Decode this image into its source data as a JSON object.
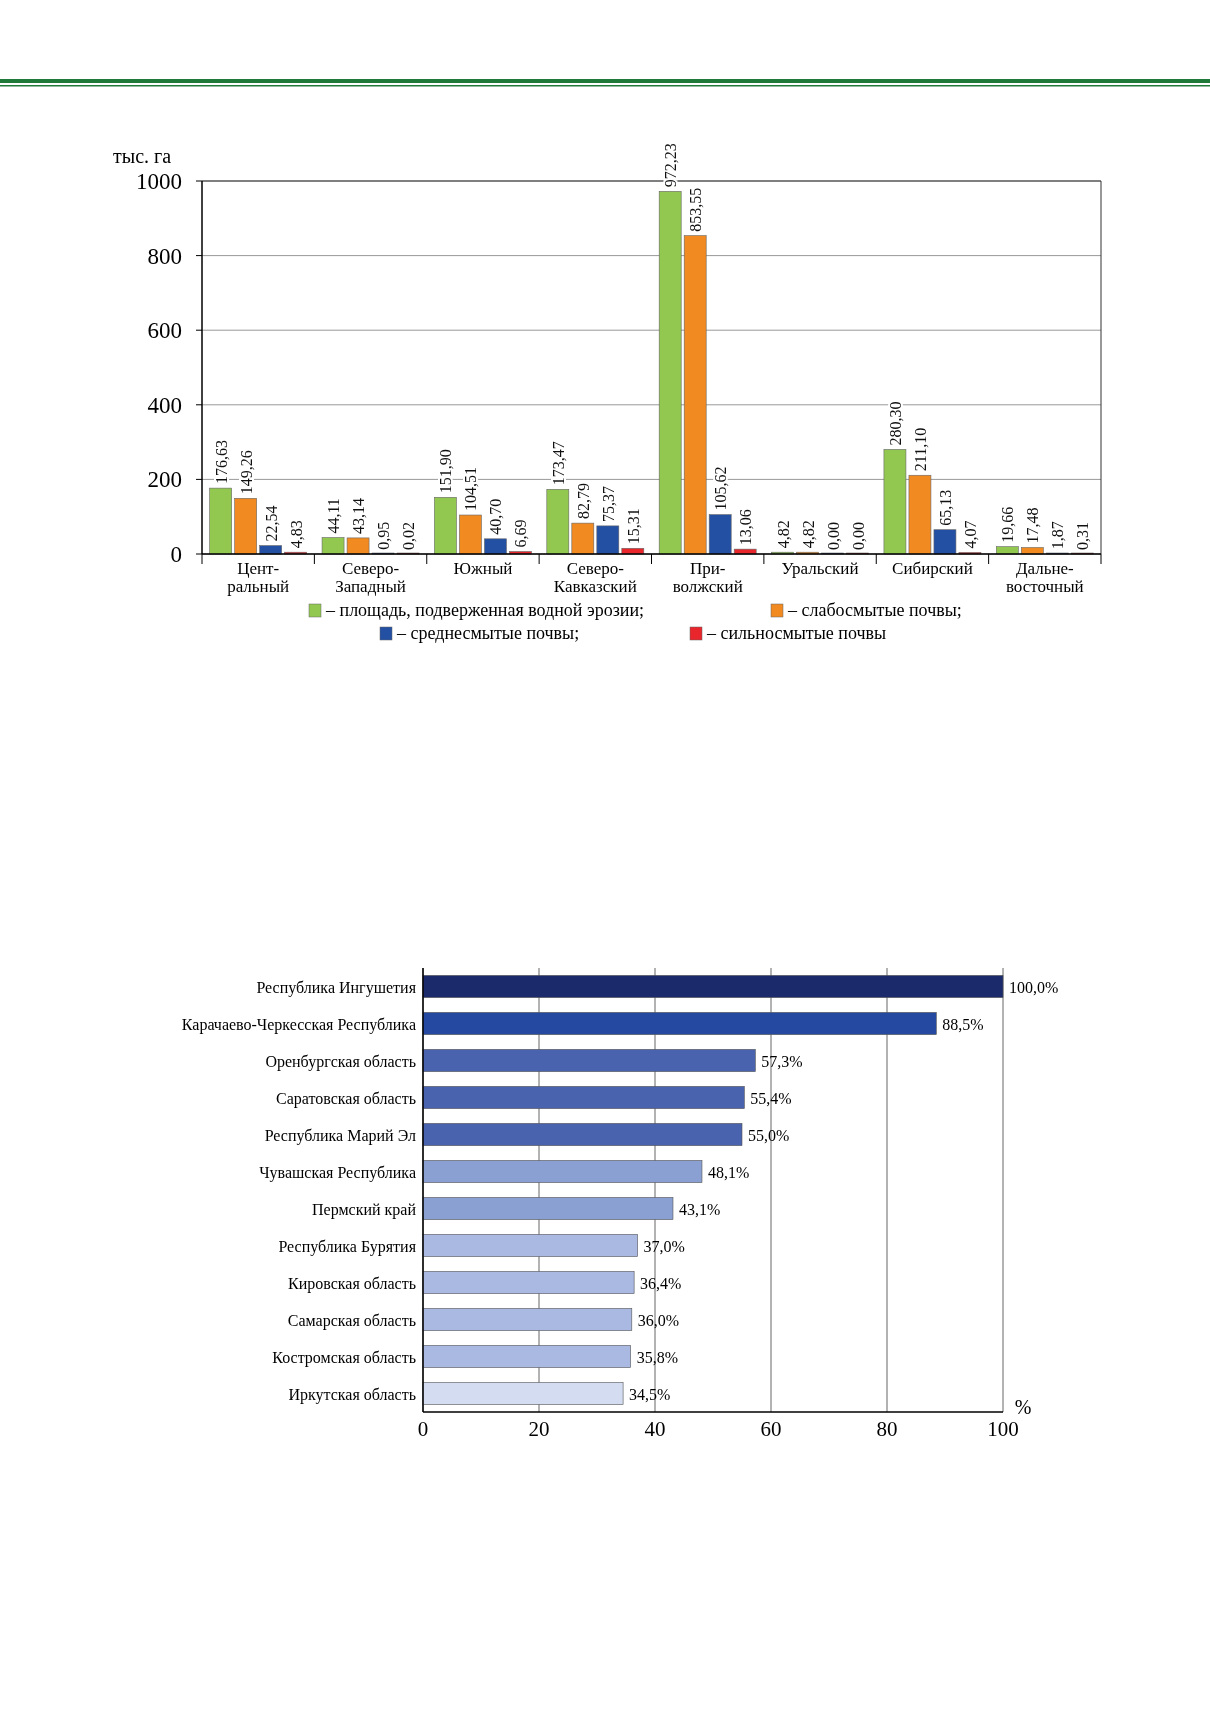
{
  "chart_data": [
    {
      "type": "bar",
      "ylabel": "тыс. га",
      "categories": [
        "Цент-\nральный",
        "Северо-\nЗападный",
        "Южный",
        "Северо-\nКавказский",
        "При-\nволжский",
        "Уральский",
        "Сибирский",
        "Дальне-\nвосточный"
      ],
      "series": [
        {
          "name": "– площадь, подверженная водной эрозии;",
          "color": "#92c84f",
          "values": [
            176.63,
            44.11,
            151.9,
            173.47,
            972.23,
            4.82,
            280.3,
            19.66
          ],
          "value_labels": [
            "176,63",
            "44,11",
            "151,90",
            "173,47",
            "972,23",
            "4,82",
            "280,30",
            "19,66"
          ]
        },
        {
          "name": "– слабосмытые почвы;",
          "color": "#f28a22",
          "values": [
            149.26,
            43.14,
            104.51,
            82.79,
            853.55,
            4.82,
            211.1,
            17.48
          ],
          "value_labels": [
            "149,26",
            "43,14",
            "104,51",
            "82,79",
            "853,55",
            "4,82",
            "211,10",
            "17,48"
          ]
        },
        {
          "name": "– среднесмытые почвы;",
          "color": "#2450a4",
          "values": [
            22.54,
            0.95,
            40.7,
            75.37,
            105.62,
            0.0,
            65.13,
            1.87
          ],
          "value_labels": [
            "22,54",
            "0,95",
            "40,70",
            "75,37",
            "105,62",
            "0,00",
            "65,13",
            "1,87"
          ]
        },
        {
          "name": "– сильносмытые почвы",
          "color": "#e8262c",
          "values": [
            4.83,
            0.02,
            6.69,
            15.31,
            13.06,
            0.0,
            4.07,
            0.31
          ],
          "value_labels": [
            "4,83",
            "0,02",
            "6,69",
            "15,31",
            "13,06",
            "0,00",
            "4,07",
            "0,31"
          ]
        }
      ],
      "ylim": [
        0,
        1000
      ],
      "yticks": [
        0,
        200,
        400,
        600,
        800,
        1000
      ],
      "grid": "y",
      "legend": "bottom"
    },
    {
      "type": "bar",
      "orientation": "horizontal",
      "xlabel": "%",
      "categories": [
        "Республика Ингушетия",
        "Карачаево-Черкесская Республика",
        "Оренбургская область",
        "Саратовская область",
        "Республика Марий Эл",
        "Чувашская Республика",
        "Пермский край",
        "Республика Бурятия",
        "Кировская область",
        "Самарская область",
        "Костромская область",
        "Иркутская область"
      ],
      "values": [
        100.0,
        88.5,
        57.3,
        55.4,
        55.0,
        48.1,
        43.1,
        37.0,
        36.4,
        36.0,
        35.8,
        34.5
      ],
      "value_labels": [
        "100,0%",
        "88,5%",
        "57,3%",
        "55,4%",
        "55,0%",
        "48,1%",
        "43,1%",
        "37,0%",
        "36,4%",
        "36,0%",
        "35,8%",
        "34,5%"
      ],
      "colors": [
        "#1b2a6b",
        "#2549a0",
        "#4a63ae",
        "#4a63ae",
        "#4a63ae",
        "#8a9fd2",
        "#8a9fd2",
        "#aab9e1",
        "#aab9e1",
        "#aab9e1",
        "#aab9e1",
        "#d3dcf0"
      ],
      "xlim": [
        0,
        100
      ],
      "xticks": [
        0,
        20,
        40,
        60,
        80,
        100
      ],
      "grid": "x"
    }
  ]
}
